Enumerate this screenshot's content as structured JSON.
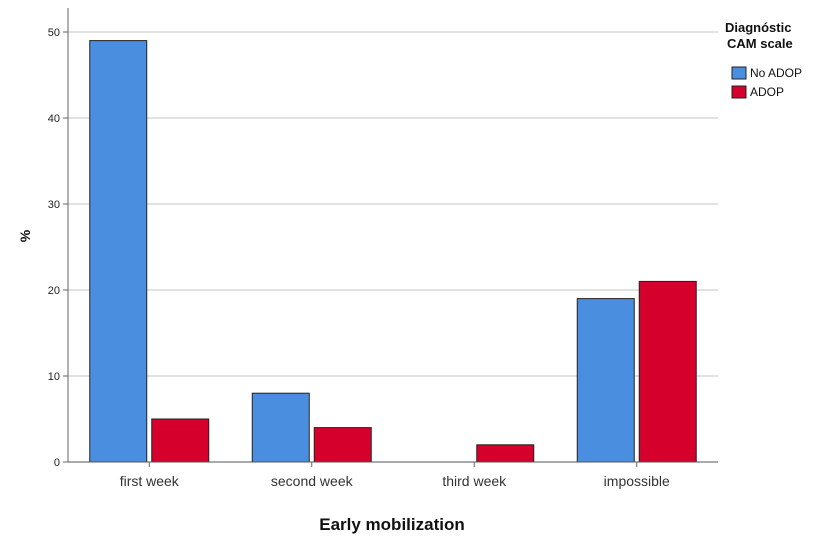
{
  "chart_data": {
    "type": "bar",
    "categories": [
      "first week",
      "second week",
      "third week",
      "impossible"
    ],
    "series": [
      {
        "name": "No ADOP",
        "color": "#4a8ee0",
        "values": [
          49,
          8,
          0,
          19
        ]
      },
      {
        "name": "ADOP",
        "color": "#d6002c",
        "values": [
          5,
          4,
          2,
          21
        ]
      }
    ],
    "xlabel": "Early mobilization",
    "ylabel": "%",
    "ylim": [
      0,
      50
    ],
    "yticks": [
      0,
      10,
      20,
      30,
      40,
      50
    ],
    "grid": true,
    "legend": {
      "title_line1": "Diagnóstic",
      "title_line2": "CAM scale",
      "placement": "top-right"
    }
  }
}
